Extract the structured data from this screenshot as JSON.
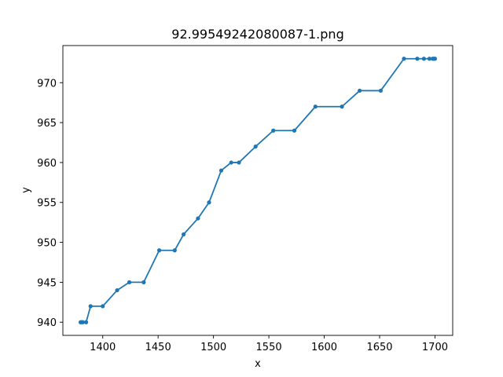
{
  "chart_data": {
    "type": "line",
    "title": "92.99549242080087-1.png",
    "xlabel": "x",
    "ylabel": "y",
    "xlim": [
      1380,
      1700
    ],
    "ylim": [
      940,
      973
    ],
    "x_ticks": [
      1400,
      1450,
      1500,
      1550,
      1600,
      1650,
      1700
    ],
    "y_ticks": [
      940,
      945,
      950,
      955,
      960,
      965,
      970
    ],
    "grid": false,
    "legend": "none",
    "series": [
      {
        "color": "#1f77b4",
        "marker": "circle",
        "points": [
          [
            1380,
            940
          ],
          [
            1381,
            940
          ],
          [
            1382,
            940
          ],
          [
            1385,
            940
          ],
          [
            1389,
            942
          ],
          [
            1400,
            942
          ],
          [
            1413,
            944
          ],
          [
            1424,
            945
          ],
          [
            1437,
            945
          ],
          [
            1451,
            949
          ],
          [
            1465,
            949
          ],
          [
            1473,
            951
          ],
          [
            1486,
            953
          ],
          [
            1496,
            955
          ],
          [
            1507,
            959
          ],
          [
            1516,
            960
          ],
          [
            1523,
            960
          ],
          [
            1538,
            962
          ],
          [
            1554,
            964
          ],
          [
            1573,
            964
          ],
          [
            1592,
            967
          ],
          [
            1616,
            967
          ],
          [
            1632,
            969
          ],
          [
            1651,
            969
          ],
          [
            1672,
            973
          ],
          [
            1684,
            973
          ],
          [
            1690,
            973
          ],
          [
            1695,
            973
          ],
          [
            1698,
            973
          ],
          [
            1699,
            973
          ],
          [
            1700,
            973
          ]
        ]
      }
    ]
  }
}
